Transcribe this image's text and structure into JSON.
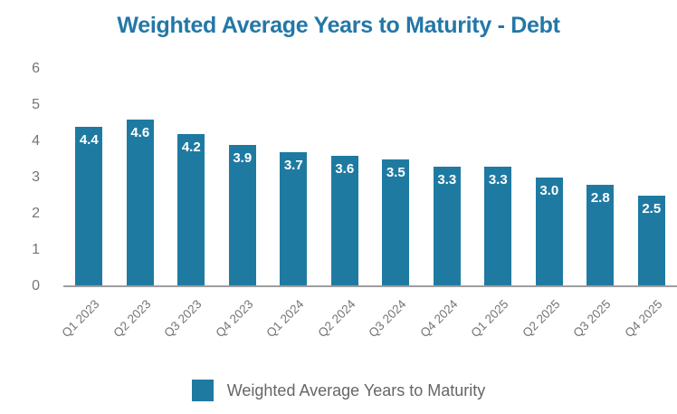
{
  "chart_data": {
    "type": "bar",
    "title": "Weighted Average Years to Maturity - Debt",
    "categories": [
      "Q1 2023",
      "Q2 2023",
      "Q3 2023",
      "Q4 2023",
      "Q1 2024",
      "Q2 2024",
      "Q3 2024",
      "Q4 2024",
      "Q1 2025",
      "Q2 2025",
      "Q3 2025",
      "Q4 2025"
    ],
    "values": [
      4.4,
      4.6,
      4.2,
      3.9,
      3.7,
      3.6,
      3.5,
      3.3,
      3.3,
      3.0,
      2.8,
      2.5
    ],
    "value_labels": [
      "4.4",
      "4.6",
      "4.2",
      "3.9",
      "3.7",
      "3.6",
      "3.5",
      "3.3",
      "3.3",
      "3.0",
      "2.8",
      "2.5"
    ],
    "xlabel": "",
    "ylabel": "",
    "ylim": [
      0,
      6
    ],
    "y_ticks": [
      0,
      1,
      2,
      3,
      4,
      5,
      6
    ],
    "grid": false,
    "x_label_rotation_deg": -45,
    "legend": {
      "position": "bottom",
      "label": "Weighted Average Years to Maturity"
    },
    "colors": {
      "bar": "#1F7AA2",
      "title_text": "#2377A8",
      "axis_line": "#9E9E9E",
      "tick_text": "#757575",
      "legend_text": "#666666",
      "value_label_text": "#FFFFFF",
      "background": "#FFFFFF"
    }
  }
}
